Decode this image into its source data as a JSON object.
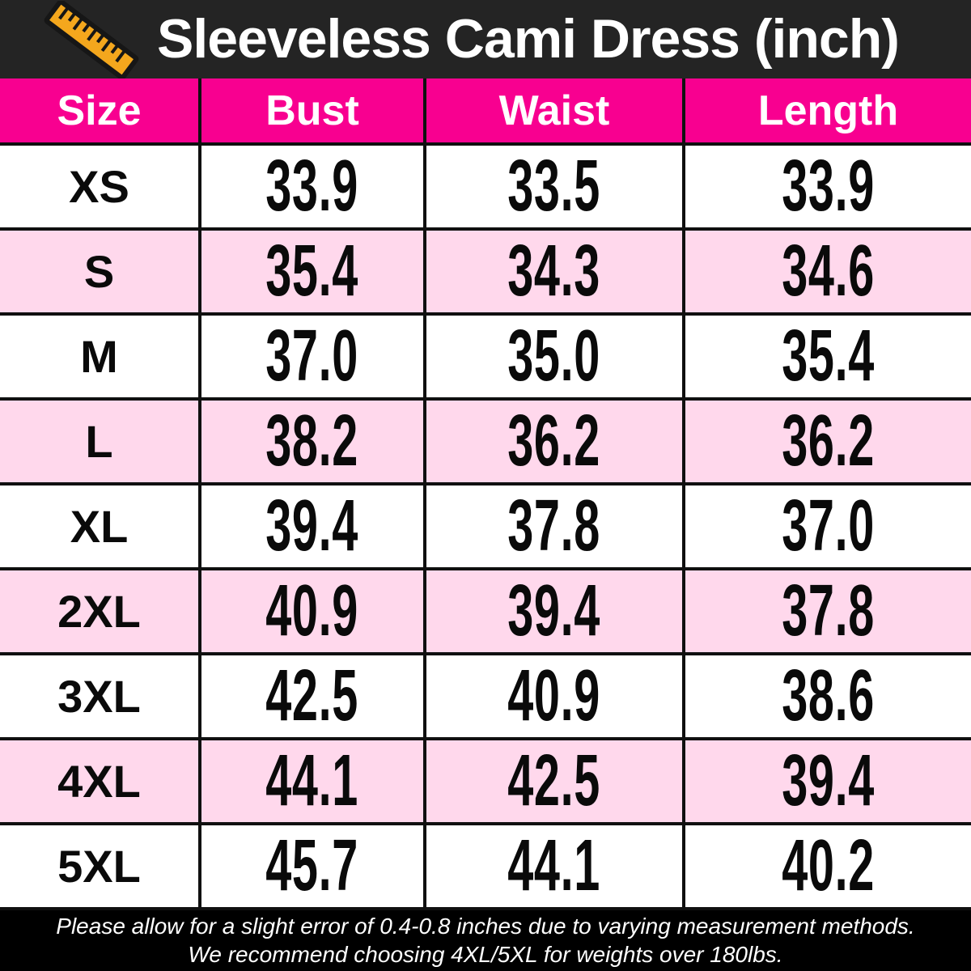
{
  "header": {
    "title": "Sleeveless Cami Dress (inch)",
    "icon": "ruler-icon"
  },
  "chart_data": {
    "type": "table",
    "title": "Sleeveless Cami Dress (inch)",
    "units": "inch",
    "columns": [
      "Size",
      "Bust",
      "Waist",
      "Length"
    ],
    "rows": [
      [
        "XS",
        "33.9",
        "33.5",
        "33.9"
      ],
      [
        "S",
        "35.4",
        "34.3",
        "34.6"
      ],
      [
        "M",
        "37.0",
        "35.0",
        "35.4"
      ],
      [
        "L",
        "38.2",
        "36.2",
        "36.2"
      ],
      [
        "XL",
        "39.4",
        "37.8",
        "37.0"
      ],
      [
        "2XL",
        "40.9",
        "39.4",
        "37.8"
      ],
      [
        "3XL",
        "42.5",
        "40.9",
        "38.6"
      ],
      [
        "4XL",
        "44.1",
        "42.5",
        "39.4"
      ],
      [
        "5XL",
        "45.7",
        "44.1",
        "40.2"
      ]
    ]
  },
  "footer": {
    "line1": "Please allow for a slight error of 0.4-0.8 inches due to varying measurement methods.",
    "line2": "We recommend choosing 4XL/5XL for weights over 180lbs."
  },
  "colors": {
    "title_bar_bg": "#242424",
    "title_text": "#ffffff",
    "accent_pink": "#f80090",
    "row_alt_pink": "#ffd8ec",
    "row_white": "#ffffff",
    "table_border": "#101010",
    "footer_bg": "#000000",
    "footer_text": "#ffffff",
    "ruler_orange": "#f4a71d"
  }
}
